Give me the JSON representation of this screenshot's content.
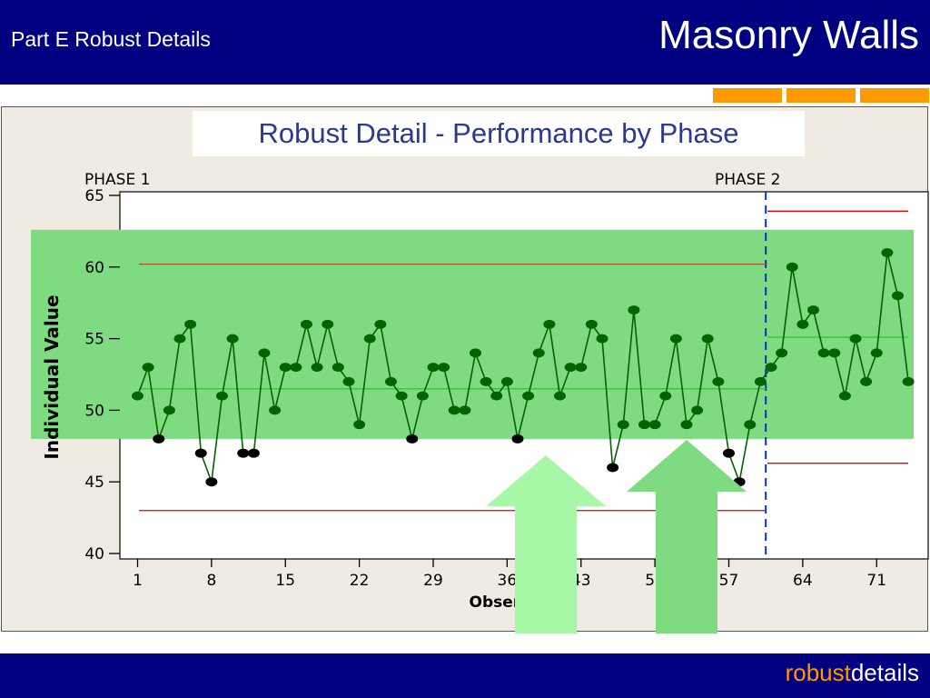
{
  "header": {
    "section": "Part E Robust Details",
    "title": "Masonry Walls"
  },
  "slide_title": "Robust Detail - Performance by Phase",
  "footer": {
    "brand_part1": "robust",
    "brand_part2": "details"
  },
  "colors": {
    "navy": "#000080",
    "orange": "#ff9900",
    "band": "#7fdb82",
    "line": "#006400",
    "out_point": "#000000",
    "limit": "#e00000",
    "center": "#33cc33",
    "phase_divider": "#0033cc",
    "arrow_light": "#a8f7a8",
    "arrow_mid": "#7fdb82"
  },
  "chart_data": {
    "type": "line",
    "xlabel": "Observation",
    "ylabel": "Individual Value",
    "xlim": [
      0,
      75
    ],
    "ylim": [
      40,
      65
    ],
    "xticks": [
      1,
      8,
      15,
      22,
      29,
      36,
      43,
      50,
      57,
      64,
      71
    ],
    "yticks": [
      40,
      45,
      50,
      55,
      60,
      65
    ],
    "phases": [
      {
        "label": "PHASE 1",
        "start": 1,
        "end": 60,
        "ucl": 60.2,
        "center": 51.5,
        "lcl": 43.0
      },
      {
        "label": "PHASE 2",
        "start": 61,
        "end": 74,
        "ucl": 63.9,
        "center": 55.1,
        "lcl": 46.3
      }
    ],
    "phase_divider_x": 60.5,
    "band": [
      48,
      62.6
    ],
    "values": [
      51,
      53,
      48,
      50,
      55,
      56,
      47,
      45,
      51,
      55,
      47,
      47,
      54,
      50,
      53,
      53,
      56,
      53,
      56,
      53,
      52,
      49,
      55,
      56,
      52,
      51,
      48,
      51,
      53,
      53,
      50,
      50,
      54,
      52,
      51,
      52,
      48,
      51,
      54,
      56,
      51,
      53,
      53,
      56,
      55,
      46,
      49,
      57,
      49,
      49,
      51,
      55,
      49,
      50,
      55,
      52,
      47,
      45,
      49,
      52,
      53,
      54,
      60,
      56,
      57,
      54,
      54,
      51,
      55,
      52,
      54,
      61,
      58,
      52
    ],
    "out_of_band": [
      3,
      7,
      8,
      11,
      12,
      27,
      37,
      46,
      57,
      58
    ]
  }
}
